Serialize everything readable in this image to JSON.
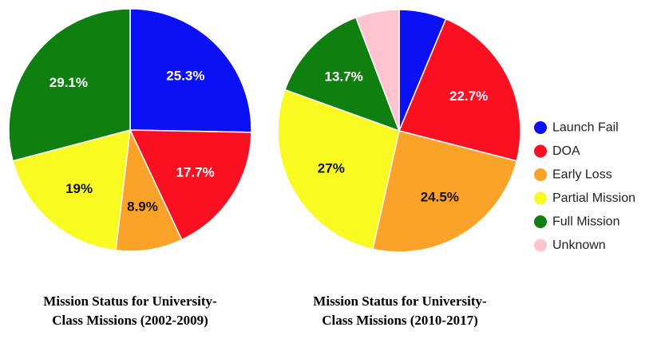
{
  "chart_data": [
    {
      "type": "pie",
      "title": "Mission Status for University-Class Missions (2002-2009)",
      "title_lines": [
        "Mission Status for University-",
        "Class Missions (2002-2009)"
      ],
      "slices": [
        {
          "name": "Launch Fail",
          "value": 25.3,
          "label": "25.3%",
          "color": "#0b10f5"
        },
        {
          "name": "DOA",
          "value": 17.7,
          "label": "17.7%",
          "color": "#fb1022"
        },
        {
          "name": "Early Loss",
          "value": 8.9,
          "label": "8.9%",
          "color": "#fba329"
        },
        {
          "name": "Partial Mission",
          "value": 19.0,
          "label": "19%",
          "color": "#fafa23"
        },
        {
          "name": "Full Mission",
          "value": 29.1,
          "label": "29.1%",
          "color": "#0f7f10"
        }
      ]
    },
    {
      "type": "pie",
      "title": "Mission Status for University-Class Missions (2010-2017)",
      "title_lines": [
        "Mission Status for University-",
        "Class Missions (2010-2017)"
      ],
      "slices": [
        {
          "name": "Launch Fail",
          "value": 6.3,
          "label": "",
          "color": "#0b10f5"
        },
        {
          "name": "DOA",
          "value": 22.7,
          "label": "22.7%",
          "color": "#fb1022"
        },
        {
          "name": "Early Loss",
          "value": 24.5,
          "label": "24.5%",
          "color": "#fba329"
        },
        {
          "name": "Partial Mission",
          "value": 27.0,
          "label": "27%",
          "color": "#fafa23"
        },
        {
          "name": "Full Mission",
          "value": 13.7,
          "label": "13.7%",
          "color": "#0f7f10"
        },
        {
          "name": "Unknown",
          "value": 5.8,
          "label": "",
          "color": "#fec4d0"
        }
      ]
    }
  ],
  "legend": {
    "placement": "right",
    "items": [
      {
        "label": "Launch Fail",
        "color": "#0b10f5"
      },
      {
        "label": "DOA",
        "color": "#fb1022"
      },
      {
        "label": "Early Loss",
        "color": "#fba329"
      },
      {
        "label": "Partial Mission",
        "color": "#fafa23"
      },
      {
        "label": "Full Mission",
        "color": "#0f7f10"
      },
      {
        "label": "Unknown",
        "color": "#fec4d0"
      }
    ]
  }
}
